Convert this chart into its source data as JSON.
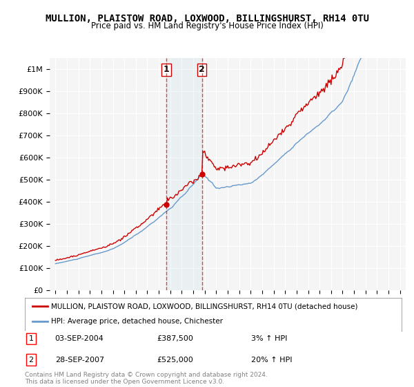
{
  "title": "MULLION, PLAISTOW ROAD, LOXWOOD, BILLINGSHURST, RH14 0TU",
  "subtitle": "Price paid vs. HM Land Registry's House Price Index (HPI)",
  "legend_entry1": "MULLION, PLAISTOW ROAD, LOXWOOD, BILLINGSHURST, RH14 0TU (detached house)",
  "legend_entry2": "HPI: Average price, detached house, Chichester",
  "footnote": "Contains HM Land Registry data © Crown copyright and database right 2024.\nThis data is licensed under the Open Government Licence v3.0.",
  "red_color": "#cc0000",
  "blue_color": "#6699cc",
  "sale1_label": "1",
  "sale1_date": "03-SEP-2004",
  "sale1_price": "£387,500",
  "sale1_hpi": "3% ↑ HPI",
  "sale1_year": 2004.67,
  "sale2_label": "2",
  "sale2_date": "28-SEP-2007",
  "sale2_price": "£525,000",
  "sale2_hpi": "20% ↑ HPI",
  "sale2_year": 2007.75,
  "ylim_min": 0,
  "ylim_max": 1050000,
  "yticks": [
    0,
    100000,
    200000,
    300000,
    400000,
    500000,
    600000,
    700000,
    800000,
    900000,
    1000000
  ],
  "ytick_labels": [
    "£0",
    "£100K",
    "£200K",
    "£300K",
    "£400K",
    "£500K",
    "£600K",
    "£700K",
    "£800K",
    "£900K",
    "£1M"
  ],
  "background_color": "#ffffff",
  "plot_bg_color": "#f5f5f5"
}
